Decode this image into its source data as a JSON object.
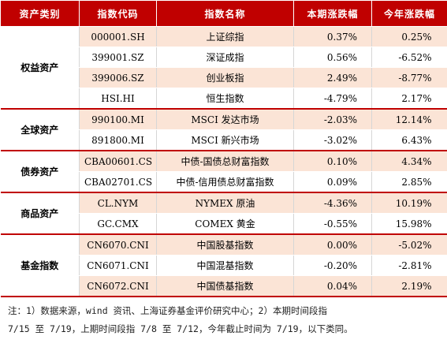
{
  "table": {
    "headers": [
      "资产类别",
      "指数代码",
      "指数名称",
      "本期涨跌幅",
      "今年涨跌幅"
    ],
    "groups": [
      {
        "category": "权益资产",
        "rows": [
          {
            "code": "000001.SH",
            "name": "上证综指",
            "period": "0.37%",
            "ytd": "0.25%"
          },
          {
            "code": "399001.SZ",
            "name": "深证成指",
            "period": "0.56%",
            "ytd": "-6.52%"
          },
          {
            "code": "399006.SZ",
            "name": "创业板指",
            "period": "2.49%",
            "ytd": "-8.77%"
          },
          {
            "code": "HSI.HI",
            "name": "恒生指数",
            "period": "-4.79%",
            "ytd": "2.17%"
          }
        ]
      },
      {
        "category": "全球资产",
        "rows": [
          {
            "code": "990100.MI",
            "name": "MSCI 发达市场",
            "period": "-2.03%",
            "ytd": "12.14%"
          },
          {
            "code": "891800.MI",
            "name": "MSCI 新兴市场",
            "period": "-3.02%",
            "ytd": "6.43%"
          }
        ]
      },
      {
        "category": "债券资产",
        "rows": [
          {
            "code": "CBA00601.CS",
            "name": "中债-国债总财富指数",
            "period": "0.10%",
            "ytd": "4.34%"
          },
          {
            "code": "CBA02701.CS",
            "name": "中债-信用债总财富指数",
            "period": "0.09%",
            "ytd": "2.85%"
          }
        ]
      },
      {
        "category": "商品资产",
        "rows": [
          {
            "code": "CL.NYM",
            "name": "NYMEX 原油",
            "period": "-4.36%",
            "ytd": "10.19%"
          },
          {
            "code": "GC.CMX",
            "name": "COMEX 黄金",
            "period": "-0.55%",
            "ytd": "15.98%"
          }
        ]
      },
      {
        "category": "基金指数",
        "rows": [
          {
            "code": "CN6070.CNI",
            "name": "中国股基指数",
            "period": "0.00%",
            "ytd": "-5.02%"
          },
          {
            "code": "CN6071.CNI",
            "name": "中国混基指数",
            "period": "-0.20%",
            "ytd": "-2.81%"
          },
          {
            "code": "CN6072.CNI",
            "name": "中国债基指数",
            "period": "0.04%",
            "ytd": "2.19%"
          }
        ]
      }
    ]
  },
  "note": {
    "line1": "注：1）数据来源，wind 资讯、上海证券基金评价研究中心；2）本期时间段指",
    "line2": "7/15 至 7/19，上期时间段指 7/8 至 7/12，今年截止时间为 7/19，以下类同。"
  }
}
